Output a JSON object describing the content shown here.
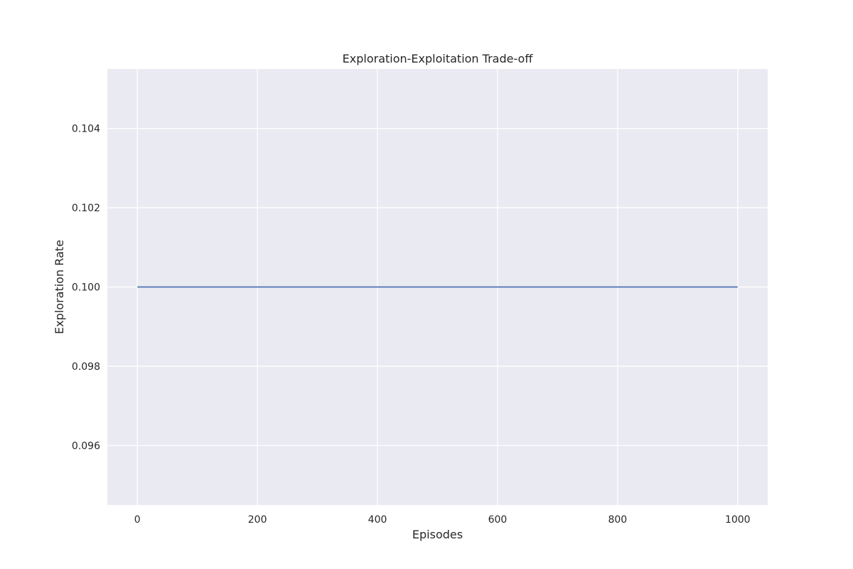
{
  "chart_data": {
    "type": "line",
    "title": "Exploration-Exploitation Trade-off",
    "xlabel": "Episodes",
    "ylabel": "Exploration Rate",
    "xlim": [
      -50,
      1050
    ],
    "ylim": [
      0.0945,
      0.1055
    ],
    "xticks": [
      0,
      200,
      400,
      600,
      800,
      1000
    ],
    "xtick_labels": [
      "0",
      "200",
      "400",
      "600",
      "800",
      "1000"
    ],
    "yticks": [
      0.096,
      0.098,
      0.1,
      0.102,
      0.104
    ],
    "ytick_labels": [
      "0.096",
      "0.098",
      "0.100",
      "0.102",
      "0.104"
    ],
    "grid": true,
    "background_color": "#eaeaf2",
    "grid_color": "#ffffff",
    "series": [
      {
        "color": "#4c72b0",
        "x": [
          0,
          1000
        ],
        "y": [
          0.1,
          0.1
        ]
      }
    ]
  }
}
